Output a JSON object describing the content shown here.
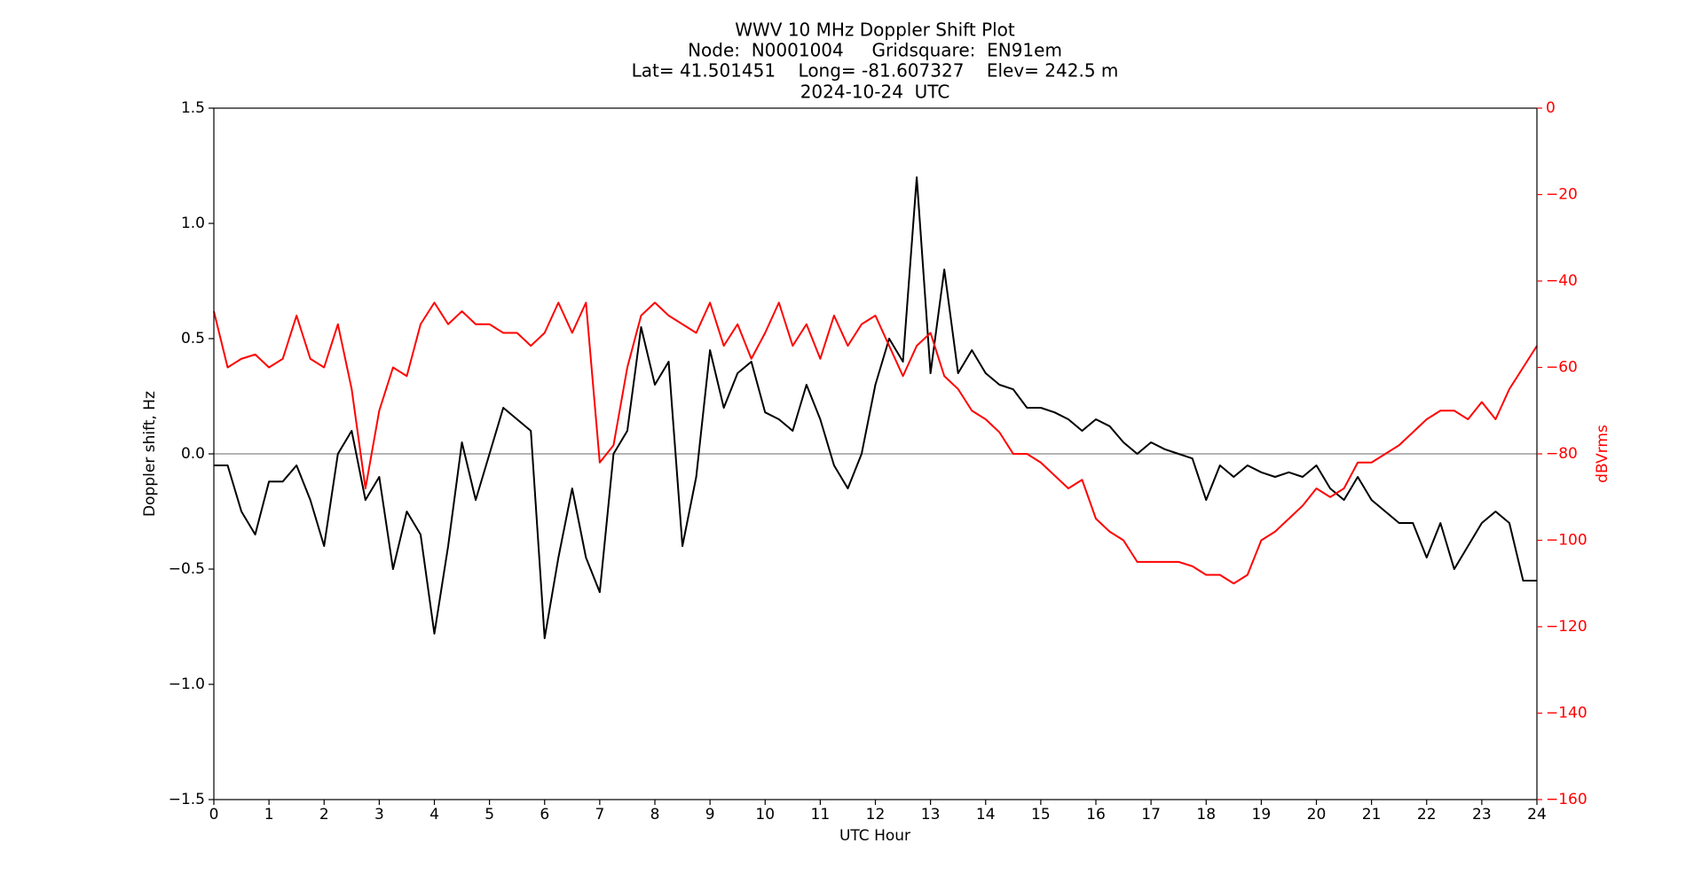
{
  "chart_data": {
    "type": "line",
    "title": "WWV 10 MHz Doppler Shift Plot",
    "subtitle": [
      "Node:  N0001004     Gridsquare:  EN91em",
      "Lat= 41.501451    Long= -81.607327    Elev= 242.5 m",
      "2024-10-24  UTC"
    ],
    "x_label": "UTC Hour",
    "y_label": "Doppler shift, Hz",
    "y2_label": "dBVrms",
    "y2_color": "#ff0000",
    "hline": 0,
    "x": [
      0,
      0.25,
      0.5,
      0.75,
      1,
      1.25,
      1.5,
      1.75,
      2,
      2.25,
      2.5,
      2.75,
      3,
      3.25,
      3.5,
      3.75,
      4,
      4.25,
      4.5,
      4.75,
      5,
      5.25,
      5.5,
      5.75,
      6,
      6.25,
      6.5,
      6.75,
      7,
      7.25,
      7.5,
      7.75,
      8,
      8.25,
      8.5,
      8.75,
      9,
      9.25,
      9.5,
      9.75,
      10,
      10.25,
      10.5,
      10.75,
      11,
      11.25,
      11.5,
      11.75,
      12,
      12.25,
      12.5,
      12.75,
      13,
      13.25,
      13.5,
      13.75,
      14,
      14.25,
      14.5,
      14.75,
      15,
      15.25,
      15.5,
      15.75,
      16,
      16.25,
      16.5,
      16.75,
      17,
      17.25,
      17.5,
      17.75,
      18,
      18.25,
      18.5,
      18.75,
      19,
      19.25,
      19.5,
      19.75,
      20,
      20.25,
      20.5,
      20.75,
      21,
      21.25,
      21.5,
      21.75,
      22,
      22.25,
      22.5,
      22.75,
      23,
      23.25,
      23.5,
      23.75,
      24
    ],
    "series": [
      {
        "name": "Doppler shift",
        "color": "#000000",
        "axis": "y",
        "values": [
          -0.05,
          -0.05,
          -0.25,
          -0.35,
          -0.12,
          -0.12,
          -0.05,
          -0.2,
          -0.4,
          0.0,
          0.1,
          -0.2,
          -0.1,
          -0.5,
          -0.25,
          -0.35,
          -0.78,
          -0.4,
          0.05,
          -0.2,
          0.0,
          0.2,
          0.15,
          0.1,
          -0.8,
          -0.45,
          -0.15,
          -0.45,
          -0.6,
          0.0,
          0.1,
          0.55,
          0.3,
          0.4,
          -0.4,
          -0.1,
          0.45,
          0.2,
          0.35,
          0.4,
          0.18,
          0.15,
          0.1,
          0.3,
          0.15,
          -0.05,
          -0.15,
          0.0,
          0.3,
          0.5,
          0.4,
          1.2,
          0.35,
          0.8,
          0.35,
          0.45,
          0.35,
          0.3,
          0.28,
          0.2,
          0.2,
          0.18,
          0.15,
          0.1,
          0.15,
          0.12,
          0.05,
          0.0,
          0.05,
          0.02,
          0.0,
          -0.02,
          -0.2,
          -0.05,
          -0.1,
          -0.05,
          -0.08,
          -0.1,
          -0.08,
          -0.1,
          -0.05,
          -0.15,
          -0.2,
          -0.1,
          -0.2,
          -0.25,
          -0.3,
          -0.3,
          -0.45,
          -0.3,
          -0.5,
          -0.4,
          -0.3,
          -0.25,
          -0.3,
          -0.55,
          -0.55
        ]
      },
      {
        "name": "dBVrms",
        "color": "#ff0000",
        "axis": "y2",
        "values": [
          -47,
          -60,
          -58,
          -57,
          -60,
          -58,
          -48,
          -58,
          -60,
          -50,
          -65,
          -88,
          -70,
          -60,
          -62,
          -50,
          -45,
          -50,
          -47,
          -50,
          -50,
          -52,
          -52,
          -55,
          -52,
          -45,
          -52,
          -45,
          -82,
          -78,
          -60,
          -48,
          -45,
          -48,
          -50,
          -52,
          -45,
          -55,
          -50,
          -58,
          -52,
          -45,
          -55,
          -50,
          -58,
          -48,
          -55,
          -50,
          -48,
          -55,
          -62,
          -55,
          -52,
          -62,
          -65,
          -70,
          -72,
          -75,
          -80,
          -80,
          -82,
          -85,
          -88,
          -86,
          -95,
          -98,
          -100,
          -105,
          -105,
          -105,
          -105,
          -106,
          -108,
          -108,
          -110,
          -108,
          -100,
          -98,
          -95,
          -92,
          -88,
          -90,
          -88,
          -82,
          -82,
          -80,
          -78,
          -75,
          -72,
          -70,
          -70,
          -72,
          -68,
          -72,
          -65,
          -60,
          -55
        ]
      }
    ],
    "xlim": [
      0,
      24
    ],
    "xticks": [
      0,
      1,
      2,
      3,
      4,
      5,
      6,
      7,
      8,
      9,
      10,
      11,
      12,
      13,
      14,
      15,
      16,
      17,
      18,
      19,
      20,
      21,
      22,
      23,
      24
    ],
    "ylim": [
      -1.5,
      1.5
    ],
    "yticks": [
      {
        "value": -1.5,
        "label": "−1.5"
      },
      {
        "value": -1.0,
        "label": "−1.0"
      },
      {
        "value": -0.5,
        "label": "−0.5"
      },
      {
        "value": 0.0,
        "label": "0.0"
      },
      0.5,
      {
        "value": 1.0,
        "label": "1.0"
      },
      1.5
    ],
    "y2lim": [
      -160,
      0
    ],
    "y2ticks": [
      {
        "value": -160,
        "label": "−160"
      },
      {
        "value": -140,
        "label": "−140"
      },
      {
        "value": -120,
        "label": "−120"
      },
      {
        "value": -100,
        "label": "−100"
      },
      {
        "value": -80,
        "label": "−80"
      },
      {
        "value": -60,
        "label": "−60"
      },
      {
        "value": -40,
        "label": "−40"
      },
      {
        "value": -20,
        "label": "−20"
      },
      0
    ]
  }
}
